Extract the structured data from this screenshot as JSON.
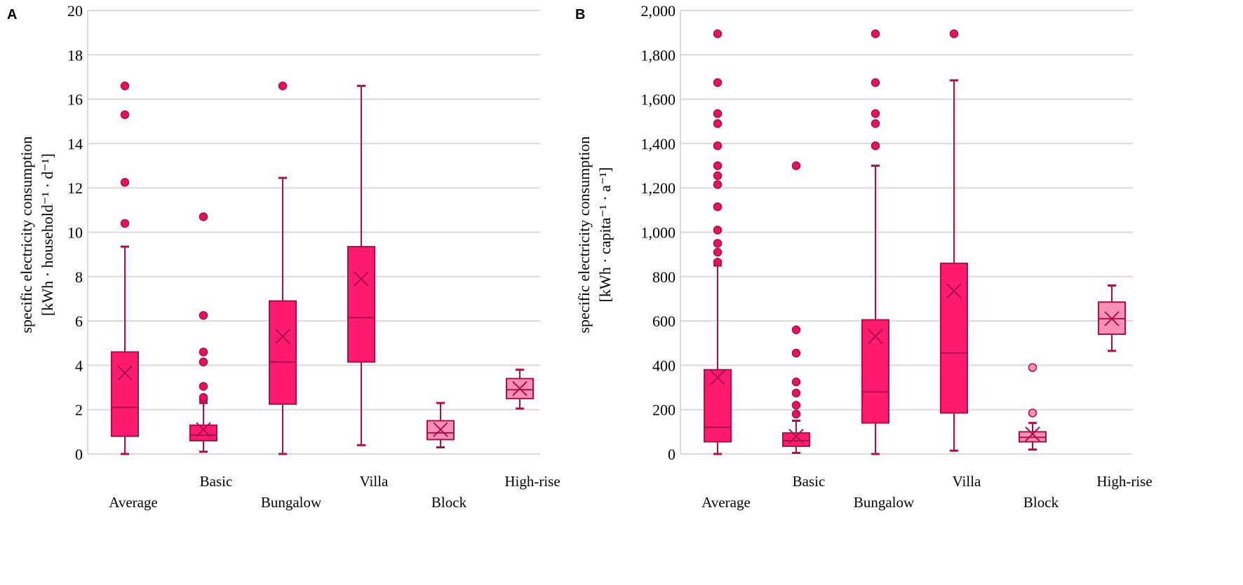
{
  "colors": {
    "fill": "#fe1a6c",
    "stroke": "#ad0f4c",
    "light_fill": "#f890b6",
    "grid": "#d9d9d9",
    "outlier": "#e3135f"
  },
  "chart_data": [
    {
      "type": "box",
      "panel_label": "A",
      "ylabel_line1": "specific electricity consumption",
      "ylabel_line2": "[kWh · household⁻¹ · d⁻¹]",
      "ylim": [
        0,
        20
      ],
      "yticks": [
        0,
        2,
        4,
        6,
        8,
        10,
        12,
        14,
        16,
        18,
        20
      ],
      "ytick_labels": [
        "0",
        "2",
        "4",
        "6",
        "8",
        "10",
        "12",
        "14",
        "16",
        "18",
        "20"
      ],
      "grid": true,
      "categories": [
        "Average",
        "Basic",
        "Bungalow",
        "Villa",
        "Block",
        "High-rise"
      ],
      "boxes": [
        {
          "name": "Average",
          "min": 0,
          "q1": 0.8,
          "median": 2.1,
          "q3": 4.6,
          "max": 9.35,
          "mean": 3.65,
          "outliers": [
            10.4,
            12.25,
            15.3,
            16.6
          ],
          "light": false
        },
        {
          "name": "Basic",
          "min": 0.1,
          "q1": 0.6,
          "median": 0.85,
          "q3": 1.3,
          "max": 2.3,
          "mean": 1.1,
          "outliers": [
            2.45,
            2.55,
            3.05,
            4.15,
            4.6,
            6.25,
            10.7
          ],
          "light": false
        },
        {
          "name": "Bungalow",
          "min": 0,
          "q1": 2.25,
          "median": 4.15,
          "q3": 6.9,
          "max": 12.45,
          "mean": 5.3,
          "outliers": [
            16.6
          ],
          "light": false
        },
        {
          "name": "Villa",
          "min": 0.4,
          "q1": 4.15,
          "median": 6.15,
          "q3": 9.35,
          "max": 16.6,
          "mean": 7.9,
          "outliers": [],
          "light": false
        },
        {
          "name": "Block",
          "min": 0.3,
          "q1": 0.65,
          "median": 0.95,
          "q3": 1.5,
          "max": 2.3,
          "mean": 1.1,
          "outliers": [],
          "light": true
        },
        {
          "name": "High-rise",
          "min": 2.05,
          "q1": 2.5,
          "median": 2.9,
          "q3": 3.4,
          "max": 3.8,
          "mean": 2.95,
          "outliers": [],
          "light": true
        }
      ]
    },
    {
      "type": "box",
      "panel_label": "B",
      "ylabel_line1": "specific electricity consumption",
      "ylabel_line2": "[kWh · capita⁻¹ · a⁻¹]",
      "ylim": [
        0,
        2000
      ],
      "yticks": [
        0,
        200,
        400,
        600,
        800,
        1000,
        1200,
        1400,
        1600,
        1800,
        2000
      ],
      "ytick_labels": [
        "0",
        "200",
        "400",
        "600",
        "800",
        "1,000",
        "1,200",
        "1,400",
        "1,600",
        "1,800",
        "2,000"
      ],
      "grid": true,
      "categories": [
        "Average",
        "Basic",
        "Bungalow",
        "Villa",
        "Block",
        "High-rise"
      ],
      "boxes": [
        {
          "name": "Average",
          "min": 0,
          "q1": 55,
          "median": 120,
          "q3": 380,
          "max": 850,
          "mean": 345,
          "outliers": [
            865,
            910,
            950,
            1010,
            1115,
            1215,
            1255,
            1300,
            1390,
            1490,
            1535,
            1675,
            1895
          ],
          "light": false
        },
        {
          "name": "Basic",
          "min": 5,
          "q1": 35,
          "median": 60,
          "q3": 95,
          "max": 150,
          "mean": 80,
          "outliers": [
            180,
            220,
            275,
            325,
            455,
            560,
            1300
          ],
          "light": false
        },
        {
          "name": "Bungalow",
          "min": 0,
          "q1": 140,
          "median": 280,
          "q3": 605,
          "max": 1300,
          "mean": 530,
          "outliers": [
            1390,
            1490,
            1535,
            1675,
            1895
          ],
          "light": false
        },
        {
          "name": "Villa",
          "min": 15,
          "q1": 185,
          "median": 455,
          "q3": 860,
          "max": 1685,
          "mean": 735,
          "outliers": [
            1895
          ],
          "light": false
        },
        {
          "name": "Block",
          "min": 20,
          "q1": 55,
          "median": 75,
          "q3": 100,
          "max": 140,
          "mean": 90,
          "outliers": [
            185,
            390
          ],
          "light": true
        },
        {
          "name": "High-rise",
          "min": 465,
          "q1": 540,
          "median": 610,
          "q3": 685,
          "max": 760,
          "mean": 610,
          "outliers": [],
          "light": true
        }
      ]
    }
  ]
}
